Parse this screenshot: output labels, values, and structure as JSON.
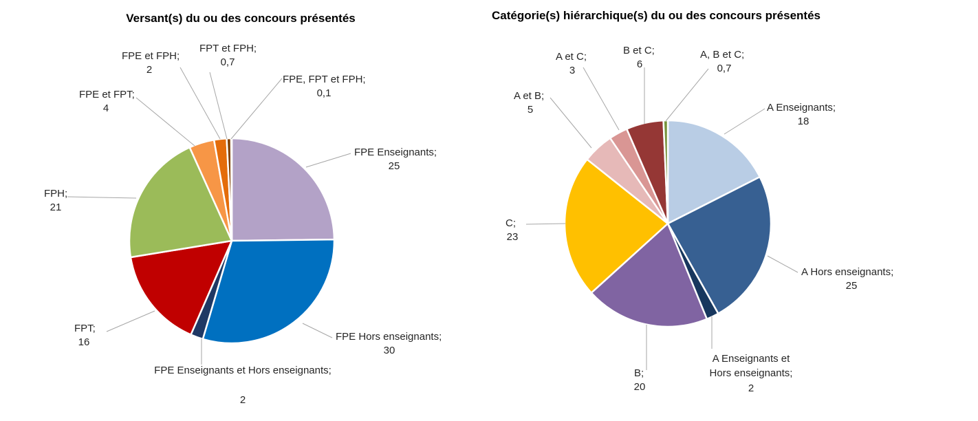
{
  "chart_data": [
    {
      "type": "pie",
      "title": "Versant(s) du ou des concours présentés",
      "slices": [
        {
          "label": "FPE Enseignants;",
          "value": 25,
          "display": "25",
          "color": "#B3A2C7"
        },
        {
          "label": "FPE Hors enseignants;",
          "value": 30,
          "display": "30",
          "color": "#0070C0"
        },
        {
          "label": "FPE Enseignants et Hors enseignants;",
          "value": 2,
          "display": "2",
          "color": "#1F3864"
        },
        {
          "label": "FPT;",
          "value": 16,
          "display": "16",
          "color": "#C00000"
        },
        {
          "label": "FPH;",
          "value": 21,
          "display": "21",
          "color": "#9BBB59"
        },
        {
          "label": "FPE et FPT;",
          "value": 4,
          "display": "4",
          "color": "#F79646"
        },
        {
          "label": "FPE et FPH;",
          "value": 2,
          "display": "2",
          "color": "#E46C0A"
        },
        {
          "label": "FPT et FPH;",
          "value": 0.7,
          "display": "0,7",
          "color": "#7F3F00"
        },
        {
          "label": "FPE, FPT et FPH;",
          "value": 0.1,
          "display": "0,1",
          "color": "#595959"
        }
      ]
    },
    {
      "type": "pie",
      "title": "Catégorie(s) hiérarchique(s) du ou des concours présentés",
      "slices": [
        {
          "label": "A Enseignants;",
          "value": 18,
          "display": "18",
          "color": "#B9CDE5"
        },
        {
          "label": "A Hors enseignants;",
          "value": 25,
          "display": "25",
          "color": "#376092"
        },
        {
          "label": "A Enseignants et Hors enseignants;",
          "value": 2,
          "display": "2",
          "color": "#17375E"
        },
        {
          "label": "B;",
          "value": 20,
          "display": "20",
          "color": "#8064A2"
        },
        {
          "label": "C;",
          "value": 23,
          "display": "23",
          "color": "#FFC000"
        },
        {
          "label": "A et B;",
          "value": 5,
          "display": "5",
          "color": "#E6B9B8"
        },
        {
          "label": "A et C;",
          "value": 3,
          "display": "3",
          "color": "#D99694"
        },
        {
          "label": "B et C;",
          "value": 6,
          "display": "6",
          "color": "#953735"
        },
        {
          "label": "A, B et C;",
          "value": 0.7,
          "display": "0,7",
          "color": "#77933C"
        }
      ]
    }
  ]
}
